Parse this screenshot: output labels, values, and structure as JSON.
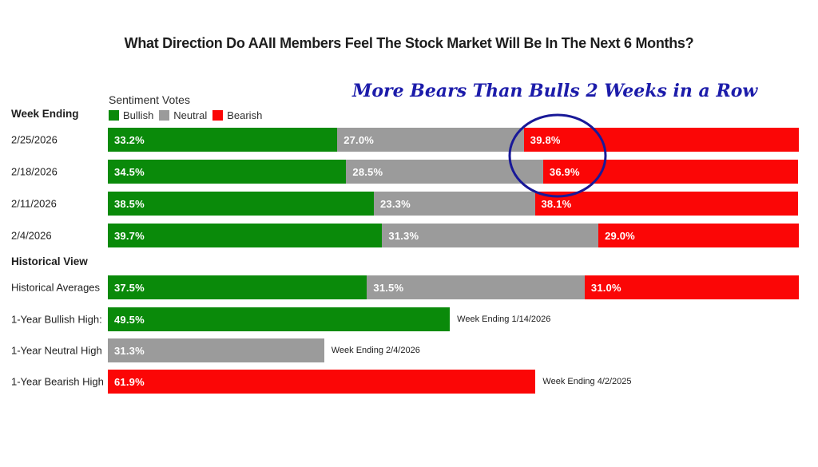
{
  "title": "What Direction Do AAII Members Feel The Stock Market Will Be In The Next 6 Months?",
  "annotation": {
    "text": "More Bears Than Bulls 2 Weeks in a Row",
    "text_color": "#1c1caa",
    "circle_color": "#191998"
  },
  "sections": {
    "weekly_header": "Week Ending",
    "historical_header": "Historical View"
  },
  "legend": {
    "title": "Sentiment Votes",
    "items": [
      {
        "label": "Bullish",
        "color": "#0a8a0a"
      },
      {
        "label": "Neutral",
        "color": "#9b9b9b"
      },
      {
        "label": "Bearish",
        "color": "#fb0606"
      }
    ]
  },
  "chart_data": {
    "type": "bar",
    "orientation": "horizontal_stacked",
    "title": "What Direction Do AAII Members Feel The Stock Market Will Be In The Next 6 Months?",
    "value_suffix": "%",
    "xlim": [
      0,
      100
    ],
    "series_names": [
      "Bullish",
      "Neutral",
      "Bearish"
    ],
    "colors": {
      "bullish": "#0a8a0a",
      "neutral": "#9b9b9b",
      "bearish": "#fb0606"
    },
    "weekly_rows": [
      {
        "label": "2/25/2026",
        "bullish": 33.2,
        "neutral": 27.0,
        "bearish": 39.8
      },
      {
        "label": "2/18/2026",
        "bullish": 34.5,
        "neutral": 28.5,
        "bearish": 36.9
      },
      {
        "label": "2/11/2026",
        "bullish": 38.5,
        "neutral": 23.3,
        "bearish": 38.1
      },
      {
        "label": "2/4/2026",
        "bullish": 39.7,
        "neutral": 31.3,
        "bearish": 29.0
      }
    ],
    "historical_averages": {
      "label": "Historical Averages",
      "bullish": 37.5,
      "neutral": 31.5,
      "bearish": 31.0
    },
    "one_year_highs": [
      {
        "label": "1-Year Bullish High:",
        "series": "bullish",
        "value": 49.5,
        "note": "Week Ending 1/14/2026"
      },
      {
        "label": "1-Year Neutral High",
        "series": "neutral",
        "value": 31.3,
        "note": "Week Ending 2/4/2026"
      },
      {
        "label": "1-Year Bearish High",
        "series": "bearish",
        "value": 61.9,
        "note": "Week Ending 4/2/2025"
      }
    ]
  }
}
